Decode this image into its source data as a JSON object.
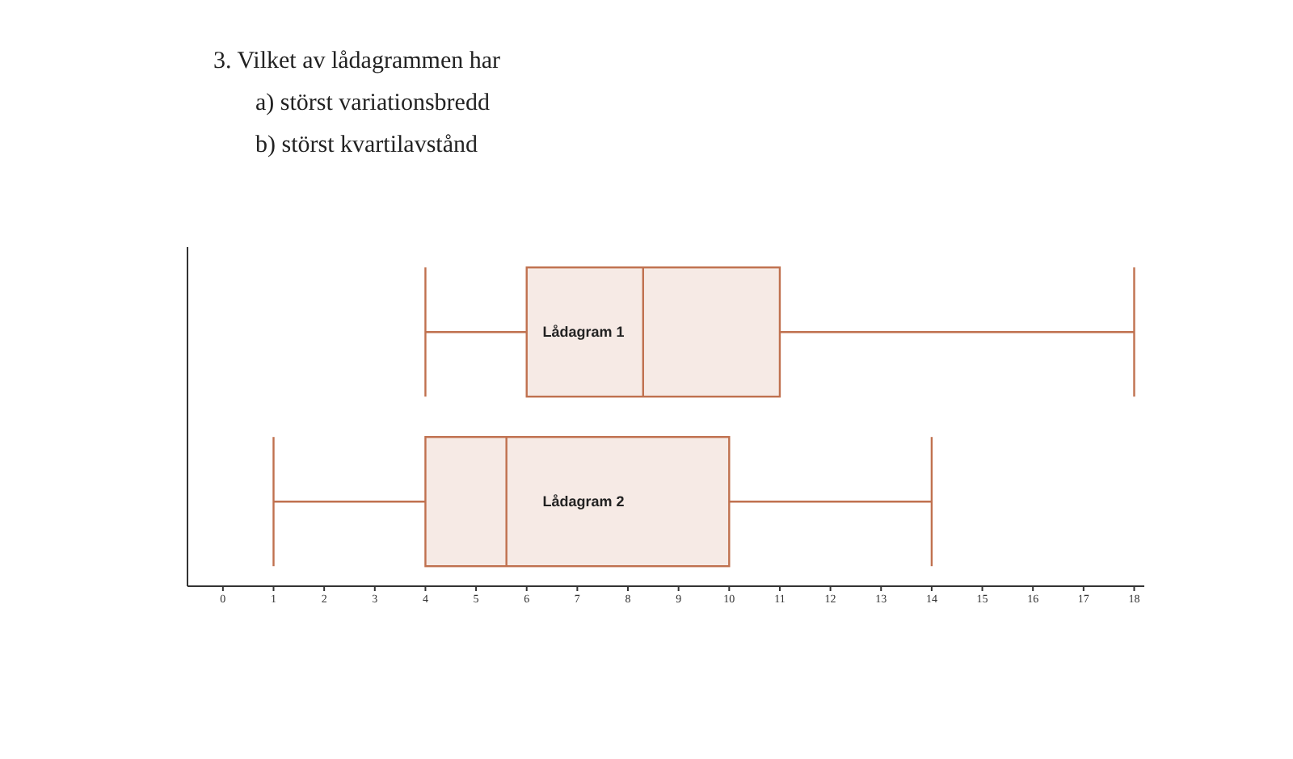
{
  "chart_data": {
    "type": "box",
    "orientation": "horizontal",
    "title": "3. Vilket av lådagrammen har",
    "annotations": [
      "a) störst variationsbredd",
      "b) störst kvartilavstånd"
    ],
    "categories": [
      "Lådagram 1",
      "Lådagram 2"
    ],
    "color": "#c0714f",
    "boxes": [
      {
        "low": 4,
        "q1": 6,
        "median": 8.3,
        "q3": 11,
        "high": 18
      },
      {
        "low": 1,
        "q1": 4,
        "median": 5.6,
        "q3": 10,
        "high": 14
      }
    ],
    "xlim": [
      -0.7,
      18.2
    ],
    "xticks": [
      0,
      1,
      2,
      3,
      4,
      5,
      6,
      7,
      8,
      9,
      10,
      11,
      12,
      13,
      14,
      15,
      16,
      17,
      18
    ],
    "grid": false
  }
}
